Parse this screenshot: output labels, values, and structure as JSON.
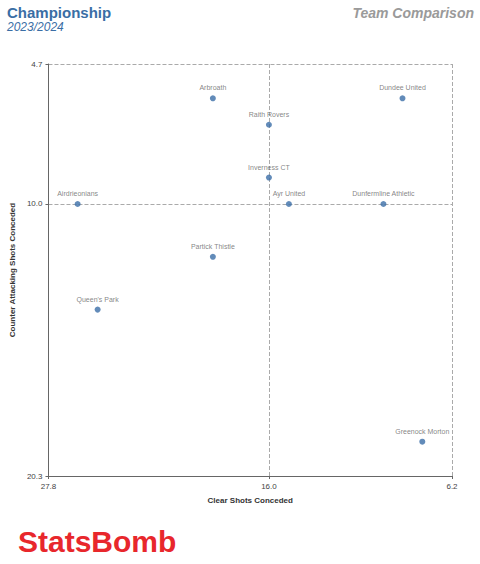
{
  "chart_data": {
    "type": "scatter",
    "title": "Championship",
    "subtitle": "2023/2024",
    "annotations": [
      "Team Comparison",
      "StatsBomb"
    ],
    "x_label": "Clear Shots Conceded",
    "y_label": "Counter Attacking Shots Conceded",
    "labels": [
      "Arbroath",
      "Dundee United",
      "Raith Rovers",
      "Inverness CT",
      "Airdrieonians",
      "Ayr United",
      "Dunfermline Athletic",
      "Partick Thistle",
      "Queen's Park",
      "Greenock Morton"
    ],
    "x": [
      19.0,
      8.85,
      16.0,
      16.0,
      26.24,
      14.93,
      9.87,
      19.0,
      25.17,
      7.79
    ],
    "values": [
      6.0,
      6.0,
      7.0,
      9.0,
      10.0,
      10.0,
      10.0,
      12.0,
      14.0,
      19.0
    ],
    "color": "#3b6ea8",
    "marker": "circle",
    "xlim": [
      27.8,
      6.2
    ],
    "xticks": [
      27.8,
      {
        "value": 16,
        "label": "16.0"
      },
      6.2
    ],
    "ylim": [
      20.3,
      4.7
    ],
    "yticks": [
      4.7,
      {
        "value": 10,
        "label": "10.0"
      },
      20.3
    ],
    "grid": true
  }
}
